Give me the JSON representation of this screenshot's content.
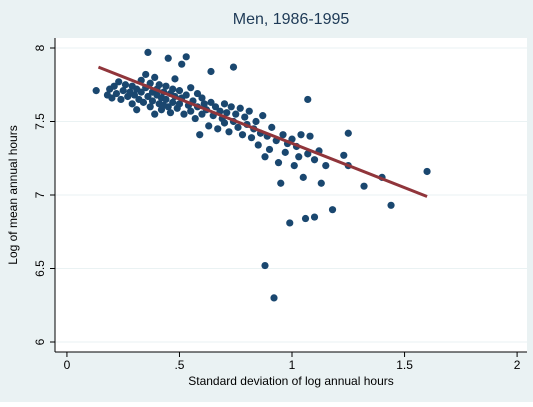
{
  "chart_data": {
    "type": "scatter",
    "title": "Men, 1986-1995",
    "x_label": "Standard deviation of log annual hours",
    "y_label": "Log of mean annual hours",
    "xlim": [
      -0.053,
      2.044
    ],
    "ylim": [
      5.932,
      8.068
    ],
    "xticks": [
      0,
      {
        "value": 0.5,
        "label": ".5"
      },
      1,
      1.5,
      2
    ],
    "yticks": [
      6,
      6.5,
      7,
      7.5,
      8
    ],
    "grid": true,
    "series": [
      {
        "type": "scatter",
        "color": "#1a476f",
        "x": [
          0.13,
          0.18,
          0.19,
          0.2,
          0.21,
          0.22,
          0.23,
          0.24,
          0.25,
          0.26,
          0.27,
          0.28,
          0.29,
          0.29,
          0.3,
          0.31,
          0.31,
          0.32,
          0.33,
          0.33,
          0.34,
          0.35,
          0.35,
          0.36,
          0.36,
          0.37,
          0.37,
          0.38,
          0.38,
          0.39,
          0.39,
          0.4,
          0.4,
          0.41,
          0.41,
          0.42,
          0.42,
          0.43,
          0.43,
          0.44,
          0.44,
          0.45,
          0.45,
          0.46,
          0.46,
          0.47,
          0.47,
          0.48,
          0.48,
          0.49,
          0.5,
          0.5,
          0.51,
          0.51,
          0.52,
          0.53,
          0.53,
          0.54,
          0.55,
          0.55,
          0.56,
          0.57,
          0.58,
          0.58,
          0.59,
          0.6,
          0.6,
          0.61,
          0.62,
          0.63,
          0.64,
          0.64,
          0.65,
          0.66,
          0.67,
          0.68,
          0.69,
          0.7,
          0.7,
          0.71,
          0.72,
          0.73,
          0.74,
          0.74,
          0.75,
          0.76,
          0.77,
          0.78,
          0.79,
          0.8,
          0.81,
          0.82,
          0.83,
          0.84,
          0.85,
          0.86,
          0.87,
          0.88,
          0.88,
          0.89,
          0.9,
          0.91,
          0.92,
          0.93,
          0.94,
          0.95,
          0.96,
          0.97,
          0.98,
          0.99,
          1.0,
          1.01,
          1.02,
          1.03,
          1.04,
          1.05,
          1.06,
          1.07,
          1.07,
          1.08,
          1.1,
          1.1,
          1.12,
          1.13,
          1.15,
          1.18,
          1.23,
          1.25,
          1.25,
          1.32,
          1.4,
          1.44,
          1.6
        ],
        "values": [
          7.71,
          7.68,
          7.72,
          7.66,
          7.74,
          7.69,
          7.77,
          7.65,
          7.71,
          7.75,
          7.67,
          7.7,
          7.62,
          7.74,
          7.68,
          7.72,
          7.58,
          7.65,
          7.7,
          7.78,
          7.63,
          7.73,
          7.82,
          7.97,
          7.67,
          7.6,
          7.76,
          7.7,
          7.64,
          7.8,
          7.55,
          7.68,
          7.72,
          7.62,
          7.75,
          7.66,
          7.58,
          7.7,
          7.61,
          7.74,
          7.65,
          7.93,
          7.6,
          7.69,
          7.56,
          7.72,
          7.63,
          7.67,
          7.79,
          7.59,
          7.71,
          7.62,
          7.89,
          7.66,
          7.55,
          7.94,
          7.68,
          7.61,
          7.73,
          7.57,
          7.64,
          7.52,
          7.69,
          7.6,
          7.41,
          7.66,
          7.55,
          7.62,
          7.58,
          7.47,
          7.84,
          7.63,
          7.54,
          7.6,
          7.45,
          7.57,
          7.52,
          7.62,
          7.49,
          7.56,
          7.43,
          7.6,
          7.87,
          7.5,
          7.55,
          7.46,
          7.59,
          7.41,
          7.53,
          7.48,
          7.57,
          7.39,
          7.45,
          7.5,
          7.34,
          7.42,
          7.54,
          6.52,
          7.26,
          7.4,
          7.31,
          7.46,
          6.3,
          7.37,
          7.22,
          7.08,
          7.41,
          7.29,
          7.35,
          6.81,
          7.38,
          7.2,
          7.33,
          7.26,
          7.41,
          7.12,
          6.84,
          7.65,
          7.28,
          7.4,
          6.85,
          7.24,
          7.3,
          7.08,
          7.2,
          6.9,
          7.27,
          7.42,
          7.2,
          7.06,
          7.12,
          6.93,
          7.16
        ]
      },
      {
        "type": "line",
        "color": "#90353b",
        "x": [
          0.14,
          1.6
        ],
        "values": [
          7.87,
          6.99
        ]
      }
    ]
  }
}
